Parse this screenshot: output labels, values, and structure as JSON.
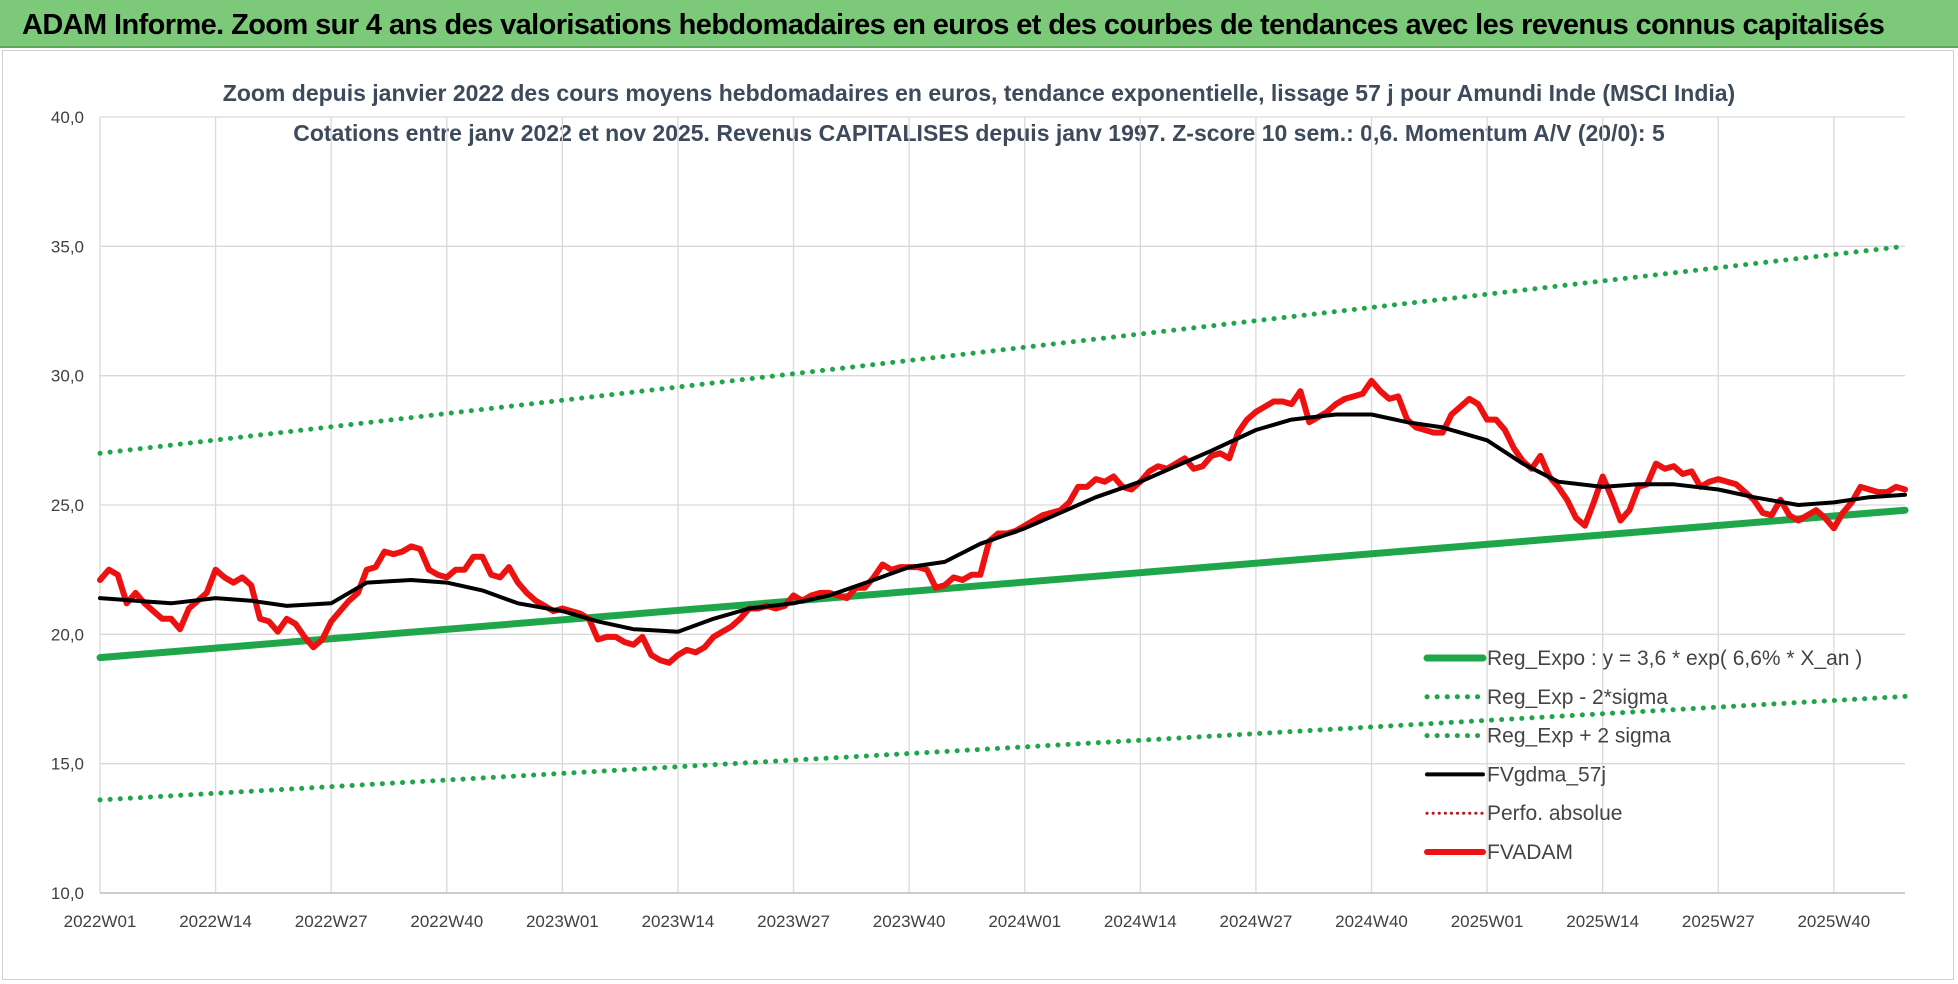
{
  "header": {
    "title": "ADAM Informe. Zoom sur 4 ans des valorisations hebdomadaires en euros et des courbes de tendances avec les revenus connus capitalisés"
  },
  "colors": {
    "banner": "#7dc97a",
    "trend": "#1fa64a",
    "band": "#1fa64a",
    "fvgdma": "#000000",
    "perfo": "#c0101a",
    "fvadam": "#ee1111"
  },
  "chart_data": {
    "type": "line",
    "title": "Zoom depuis janvier 2022 des cours moyens hebdomadaires en euros, tendance exponentielle, lissage 57 j pour Amundi Inde (MSCI India)",
    "subtitle": "Cotations entre janv 2022 et nov 2025. Revenus CAPITALISES depuis janv 1997. Z-score 10 sem.: 0,6. Momentum A/V (20/0): 5",
    "ylim": [
      10,
      40
    ],
    "yticks": [
      "10,0",
      "15,0",
      "20,0",
      "25,0",
      "30,0",
      "35,0",
      "40,0"
    ],
    "xticks": [
      "2022W01",
      "2022W14",
      "2022W27",
      "2022W40",
      "2023W01",
      "2023W14",
      "2023W27",
      "2023W40",
      "2024W01",
      "2024W14",
      "2024W27",
      "2024W40",
      "2025W01",
      "2025W14",
      "2025W27",
      "2025W40"
    ],
    "x_start": "2022W01",
    "x_end": "2025W48",
    "grid": true,
    "legend_position": "bottom-right",
    "legend": [
      {
        "label": "Reg_Expo : y = 3,6 * exp( 6,6% *  X_an )",
        "series": "reg_expo",
        "style": "solid-thick"
      },
      {
        "label": "Reg_Exp - 2*sigma",
        "series": "reg_minus",
        "style": "dotted"
      },
      {
        "label": "Reg_Exp + 2 sigma",
        "series": "reg_plus",
        "style": "dotted"
      },
      {
        "label": "FVgdma_57j",
        "series": "fvgdma",
        "style": "solid"
      },
      {
        "label": "Perfo. absolue",
        "series": "perfo",
        "style": "dotted"
      },
      {
        "label": "FVADAM",
        "series": "fvadam",
        "style": "solid-thick"
      }
    ],
    "series": [
      {
        "name": "Reg_Expo : y = 3,6 * exp( 6,6% *  X_an )",
        "key": "reg_expo",
        "x": [
          "2022W01",
          "2025W48"
        ],
        "values": [
          19.1,
          24.8
        ]
      },
      {
        "name": "Reg_Exp - 2*sigma",
        "key": "reg_minus",
        "x": [
          "2022W01",
          "2025W48"
        ],
        "values": [
          13.6,
          17.6
        ]
      },
      {
        "name": "Reg_Exp + 2 sigma",
        "key": "reg_plus",
        "x": [
          "2022W01",
          "2025W48"
        ],
        "values": [
          27.0,
          35.0
        ]
      },
      {
        "name": "FVgdma_57j",
        "key": "fvgdma",
        "x": [
          "2022W01",
          "2022W05",
          "2022W09",
          "2022W14",
          "2022W18",
          "2022W22",
          "2022W27",
          "2022W31",
          "2022W36",
          "2022W40",
          "2022W44",
          "2022W48",
          "2023W01",
          "2023W05",
          "2023W09",
          "2023W14",
          "2023W18",
          "2023W22",
          "2023W27",
          "2023W31",
          "2023W36",
          "2023W40",
          "2023W44",
          "2023W48",
          "2024W01",
          "2024W05",
          "2024W09",
          "2024W14",
          "2024W18",
          "2024W22",
          "2024W27",
          "2024W31",
          "2024W36",
          "2024W40",
          "2024W44",
          "2024W48",
          "2025W01",
          "2025W05",
          "2025W09",
          "2025W14",
          "2025W18",
          "2025W22",
          "2025W27",
          "2025W31",
          "2025W36",
          "2025W40",
          "2025W44",
          "2025W48"
        ],
        "values": [
          21.4,
          21.3,
          21.2,
          21.4,
          21.3,
          21.1,
          21.2,
          22.0,
          22.1,
          22.0,
          21.7,
          21.2,
          20.9,
          20.5,
          20.2,
          20.1,
          20.6,
          21.0,
          21.2,
          21.5,
          22.1,
          22.6,
          22.8,
          23.5,
          24.1,
          24.7,
          25.3,
          25.9,
          26.5,
          27.1,
          27.9,
          28.3,
          28.5,
          28.5,
          28.2,
          28.0,
          27.5,
          26.6,
          25.9,
          25.7,
          25.8,
          25.8,
          25.6,
          25.3,
          25.0,
          25.1,
          25.3,
          25.4
        ]
      },
      {
        "name": "Perfo. absolue",
        "key": "perfo",
        "x": [],
        "values": []
      },
      {
        "name": "FVADAM",
        "key": "fvadam",
        "x": [
          "2022W01",
          "2022W02",
          "2022W03",
          "2022W04",
          "2022W05",
          "2022W06",
          "2022W07",
          "2022W08",
          "2022W09",
          "2022W10",
          "2022W11",
          "2022W12",
          "2022W13",
          "2022W14",
          "2022W15",
          "2022W16",
          "2022W17",
          "2022W18",
          "2022W19",
          "2022W20",
          "2022W21",
          "2022W22",
          "2022W23",
          "2022W24",
          "2022W25",
          "2022W26",
          "2022W27",
          "2022W28",
          "2022W29",
          "2022W30",
          "2022W31",
          "2022W32",
          "2022W33",
          "2022W34",
          "2022W35",
          "2022W36",
          "2022W37",
          "2022W38",
          "2022W39",
          "2022W40",
          "2022W41",
          "2022W42",
          "2022W43",
          "2022W44",
          "2022W45",
          "2022W46",
          "2022W47",
          "2022W48",
          "2022W49",
          "2022W50",
          "2022W51",
          "2022W52",
          "2023W01",
          "2023W02",
          "2023W03",
          "2023W04",
          "2023W05",
          "2023W06",
          "2023W07",
          "2023W08",
          "2023W09",
          "2023W10",
          "2023W11",
          "2023W12",
          "2023W13",
          "2023W14",
          "2023W15",
          "2023W16",
          "2023W17",
          "2023W18",
          "2023W19",
          "2023W20",
          "2023W21",
          "2023W22",
          "2023W23",
          "2023W24",
          "2023W25",
          "2023W26",
          "2023W27",
          "2023W28",
          "2023W29",
          "2023W30",
          "2023W31",
          "2023W32",
          "2023W33",
          "2023W34",
          "2023W35",
          "2023W36",
          "2023W37",
          "2023W38",
          "2023W39",
          "2023W40",
          "2023W41",
          "2023W42",
          "2023W43",
          "2023W44",
          "2023W45",
          "2023W46",
          "2023W47",
          "2023W48",
          "2023W49",
          "2023W50",
          "2023W51",
          "2023W52",
          "2024W01",
          "2024W02",
          "2024W03",
          "2024W04",
          "2024W05",
          "2024W06",
          "2024W07",
          "2024W08",
          "2024W09",
          "2024W10",
          "2024W11",
          "2024W12",
          "2024W13",
          "2024W14",
          "2024W15",
          "2024W16",
          "2024W17",
          "2024W18",
          "2024W19",
          "2024W20",
          "2024W21",
          "2024W22",
          "2024W23",
          "2024W24",
          "2024W25",
          "2024W26",
          "2024W27",
          "2024W28",
          "2024W29",
          "2024W30",
          "2024W31",
          "2024W32",
          "2024W33",
          "2024W34",
          "2024W35",
          "2024W36",
          "2024W37",
          "2024W38",
          "2024W39",
          "2024W40",
          "2024W41",
          "2024W42",
          "2024W43",
          "2024W44",
          "2024W45",
          "2024W46",
          "2024W47",
          "2024W48",
          "2024W49",
          "2024W50",
          "2024W51",
          "2024W52",
          "2025W01",
          "2025W02",
          "2025W03",
          "2025W04",
          "2025W05",
          "2025W06",
          "2025W07",
          "2025W08",
          "2025W09",
          "2025W10",
          "2025W11",
          "2025W12",
          "2025W13",
          "2025W14",
          "2025W15",
          "2025W16",
          "2025W17",
          "2025W18",
          "2025W19",
          "2025W20",
          "2025W21",
          "2025W22",
          "2025W23",
          "2025W24",
          "2025W25",
          "2025W26",
          "2025W27",
          "2025W28",
          "2025W29",
          "2025W30",
          "2025W31",
          "2025W32",
          "2025W33",
          "2025W34",
          "2025W35",
          "2025W36",
          "2025W37",
          "2025W38",
          "2025W39",
          "2025W40",
          "2025W41",
          "2025W42",
          "2025W43",
          "2025W44",
          "2025W45",
          "2025W46",
          "2025W47",
          "2025W48"
        ],
        "values": [
          22.1,
          22.5,
          22.3,
          21.2,
          21.6,
          21.2,
          20.9,
          20.6,
          20.6,
          20.2,
          21.0,
          21.3,
          21.6,
          22.5,
          22.2,
          22.0,
          22.2,
          21.9,
          20.6,
          20.5,
          20.1,
          20.6,
          20.4,
          19.9,
          19.5,
          19.8,
          20.5,
          20.9,
          21.3,
          21.6,
          22.5,
          22.6,
          23.2,
          23.1,
          23.2,
          23.4,
          23.3,
          22.5,
          22.3,
          22.2,
          22.5,
          22.5,
          23.0,
          23.0,
          22.3,
          22.2,
          22.6,
          22.0,
          21.6,
          21.3,
          21.1,
          20.9,
          21.0,
          20.9,
          20.8,
          20.6,
          19.8,
          19.9,
          19.9,
          19.7,
          19.6,
          19.9,
          19.2,
          19.0,
          18.9,
          19.2,
          19.4,
          19.3,
          19.5,
          19.9,
          20.1,
          20.3,
          20.6,
          21.0,
          21.0,
          21.1,
          21.0,
          21.1,
          21.5,
          21.3,
          21.5,
          21.6,
          21.6,
          21.5,
          21.4,
          21.8,
          21.8,
          22.2,
          22.7,
          22.5,
          22.6,
          22.6,
          22.6,
          22.5,
          21.8,
          21.9,
          22.2,
          22.1,
          22.3,
          22.3,
          23.6,
          23.9,
          23.9,
          24.0,
          24.2,
          24.4,
          24.6,
          24.7,
          24.8,
          25.1,
          25.7,
          25.7,
          26.0,
          25.9,
          26.1,
          25.7,
          25.6,
          25.9,
          26.3,
          26.5,
          26.4,
          26.6,
          26.8,
          26.4,
          26.5,
          26.9,
          27.0,
          26.8,
          27.8,
          28.3,
          28.6,
          28.8,
          29.0,
          29.0,
          28.9,
          29.4,
          28.2,
          28.4,
          28.6,
          28.9,
          29.1,
          29.2,
          29.3,
          29.8,
          29.4,
          29.1,
          29.2,
          28.3,
          28.0,
          27.9,
          27.8,
          27.8,
          28.5,
          28.8,
          29.1,
          28.9,
          28.3,
          28.3,
          27.9,
          27.2,
          26.7,
          26.4,
          26.9,
          26.1,
          25.7,
          25.2,
          24.5,
          24.2,
          25.1,
          26.1,
          25.3,
          24.4,
          24.8,
          25.7,
          25.8,
          26.6,
          26.4,
          26.5,
          26.2,
          26.3,
          25.7,
          25.9,
          26.0,
          25.9,
          25.8,
          25.5,
          25.2,
          24.7,
          24.6,
          25.2,
          24.6,
          24.4,
          24.6,
          24.8,
          24.5,
          24.1,
          24.7,
          25.1,
          25.7,
          25.6,
          25.5,
          25.5,
          25.7,
          25.6
        ]
      }
    ]
  }
}
